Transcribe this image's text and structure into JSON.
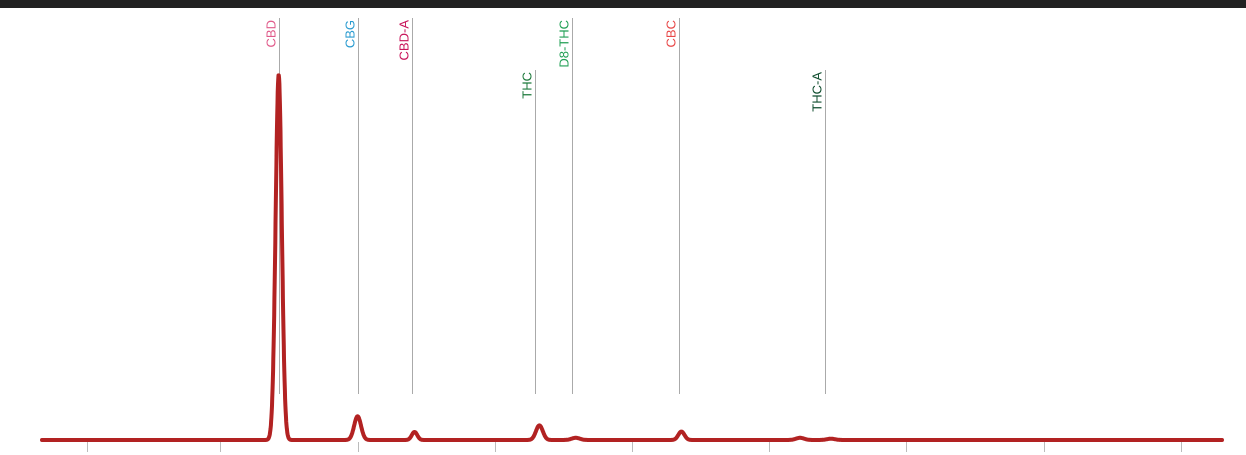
{
  "chart_data": {
    "type": "line",
    "title": "",
    "xlabel": "",
    "ylabel": "",
    "xlim": [
      0,
      17.2
    ],
    "ylim": [
      0,
      100
    ],
    "x_ticks": [
      0.65,
      2.6,
      4.6,
      6.6,
      8.6,
      10.6,
      12.6,
      14.6,
      16.6
    ],
    "grid": false,
    "legend": "none",
    "series": [
      {
        "color": "#b22222",
        "peaks": [
          {
            "x": 3.45,
            "height": 100,
            "width": 0.045
          },
          {
            "x": 4.6,
            "height": 6.5,
            "width": 0.05
          },
          {
            "x": 5.43,
            "height": 2.2,
            "width": 0.04
          },
          {
            "x": 7.25,
            "height": 4.0,
            "width": 0.05
          },
          {
            "x": 7.78,
            "height": 0.6,
            "width": 0.06
          },
          {
            "x": 9.32,
            "height": 2.3,
            "width": 0.045
          },
          {
            "x": 11.05,
            "height": 0.6,
            "width": 0.06
          },
          {
            "x": 11.5,
            "height": 0.35,
            "width": 0.06
          }
        ]
      }
    ],
    "annotations": [
      {
        "label": "CBD",
        "x": 3.45,
        "color": "#e05a8a",
        "row": "upper"
      },
      {
        "label": "CBG",
        "x": 4.6,
        "color": "#2a9bd0",
        "row": "upper"
      },
      {
        "label": "CBD-A",
        "x": 5.4,
        "color": "#c8145a",
        "row": "upper"
      },
      {
        "label": "THC",
        "x": 7.18,
        "color": "#1e7a3c",
        "row": "lower"
      },
      {
        "label": "D8-THC",
        "x": 7.73,
        "color": "#22a055",
        "row": "upper"
      },
      {
        "label": "CBC",
        "x": 9.28,
        "color": "#e84848",
        "row": "upper"
      },
      {
        "label": "THC-A",
        "x": 11.42,
        "color": "#0f4d2e",
        "row": "lower"
      }
    ]
  }
}
